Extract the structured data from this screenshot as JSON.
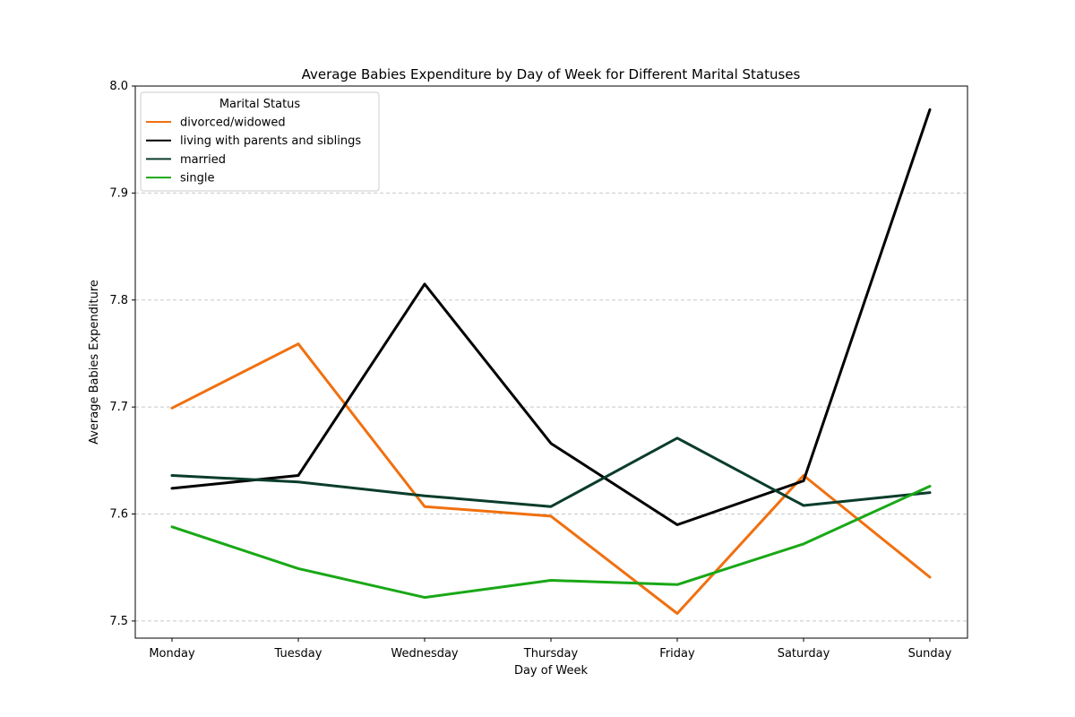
{
  "chart_data": {
    "type": "line",
    "title": "Average Babies Expenditure by Day of Week for Different Marital Statuses",
    "xlabel": "Day of Week",
    "ylabel": "Average Babies Expenditure",
    "categories": [
      "Monday",
      "Tuesday",
      "Wednesday",
      "Thursday",
      "Friday",
      "Saturday",
      "Sunday"
    ],
    "ylim": [
      7.484,
      8.0
    ],
    "yticks": [
      7.5,
      7.6,
      7.7,
      7.8,
      7.9,
      8.0
    ],
    "ytick_labels": [
      "7.5",
      "7.6",
      "7.7",
      "7.8",
      "7.9",
      "8.0"
    ],
    "grid": "horizontal dashed",
    "legend": {
      "title": "Marital Status",
      "placement": "top-left"
    },
    "series": [
      {
        "name": "divorced/widowed",
        "color": "#f07010",
        "values": [
          7.699,
          7.759,
          7.607,
          7.598,
          7.507,
          7.636,
          7.541
        ]
      },
      {
        "name": "living with parents and siblings",
        "color": "#000000",
        "values": [
          7.624,
          7.636,
          7.815,
          7.666,
          7.59,
          7.631,
          7.978
        ]
      },
      {
        "name": "married",
        "color": "#0a3d2a",
        "values": [
          7.636,
          7.63,
          7.617,
          7.607,
          7.671,
          7.608,
          7.62
        ]
      },
      {
        "name": "single",
        "color": "#19a817",
        "values": [
          7.588,
          7.549,
          7.522,
          7.538,
          7.534,
          7.572,
          7.626
        ]
      }
    ]
  }
}
